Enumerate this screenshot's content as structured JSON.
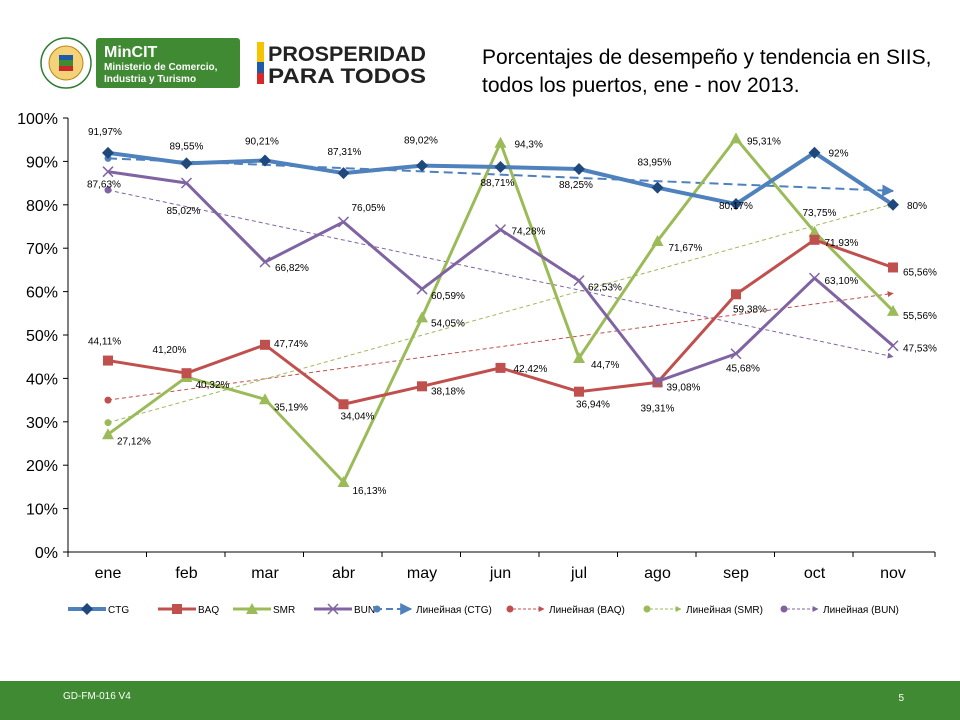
{
  "header": {
    "ministry_name": "MinCIT",
    "ministry_sub1": "Ministerio de Comercio,",
    "ministry_sub2": "Industria y Turismo",
    "slogan_line1": "PROSPERIDAD",
    "slogan_line2": "PARA TODOS",
    "title_line1": "Porcentajes de desempeño y tendencia en SIIS,",
    "title_line2": "todos los puertos, ene -  nov 2013."
  },
  "footer": {
    "code": "GD-FM-016 V4",
    "page": "5"
  },
  "colors": {
    "CTG": "#4f81bd",
    "BAQ": "#c0504d",
    "SMR": "#9bbb59",
    "BUN": "#8064a2",
    "footer": "#3f8a32"
  },
  "chart_data": {
    "type": "line",
    "categories": [
      "ene",
      "feb",
      "mar",
      "abr",
      "may",
      "jun",
      "jul",
      "ago",
      "sep",
      "oct",
      "nov"
    ],
    "ylim": [
      0,
      100
    ],
    "yticks": [
      0,
      10,
      20,
      30,
      40,
      50,
      60,
      70,
      80,
      90,
      100
    ],
    "ytick_labels": [
      "0%",
      "10%",
      "20%",
      "30%",
      "40%",
      "50%",
      "60%",
      "70%",
      "80%",
      "90%",
      "100%"
    ],
    "grid": false,
    "legend_position": "bottom",
    "series": [
      {
        "name": "CTG",
        "marker": "diamond",
        "values": [
          91.97,
          89.55,
          90.21,
          87.31,
          89.02,
          88.71,
          88.25,
          83.95,
          80.17,
          92,
          80
        ],
        "labels": [
          "91,97%",
          "89,55%",
          "90,21%",
          "87,31%",
          "89,02%",
          "88,71%",
          "88,25%",
          "83,95%",
          "80,17%",
          "92%",
          "80%"
        ]
      },
      {
        "name": "BAQ",
        "marker": "square",
        "values": [
          44.11,
          41.2,
          47.74,
          34.04,
          38.18,
          42.42,
          36.94,
          39.08,
          59.38,
          71.93,
          65.56
        ],
        "labels": [
          "44,11%",
          "41,20%",
          "47,74%",
          "34,04%",
          "38,18%",
          "42,42%",
          "36,94%",
          "39,08%",
          "59,38%",
          "71,93%",
          "65,56%"
        ]
      },
      {
        "name": "SMR",
        "marker": "triangle",
        "values": [
          27.12,
          40.32,
          35.19,
          16.13,
          54.05,
          94.3,
          44.7,
          71.67,
          95.31,
          73.75,
          55.56
        ],
        "labels": [
          "27,12%",
          "40,32%",
          "35,19%",
          "16,13%",
          "54,05%",
          "94,3%",
          "44,7%",
          "71,67%",
          "95,31%",
          "73,75%",
          "55,56%"
        ]
      },
      {
        "name": "BUN",
        "marker": "x",
        "values": [
          87.63,
          85.02,
          66.82,
          76.05,
          60.59,
          74.28,
          62.53,
          39.31,
          45.68,
          63.1,
          47.53
        ],
        "labels": [
          "87,63%",
          "85,02%",
          "66,82%",
          "76,05%",
          "60,59%",
          "74,28%",
          "62,53%",
          "39,31%",
          "45,68%",
          "63,10%",
          "47,53%"
        ]
      }
    ],
    "trendlines": [
      {
        "name": "Линейная (CTG)",
        "of": "CTG",
        "start": 90.7,
        "end": 83.2
      },
      {
        "name": "Линейная (BAQ)",
        "of": "BAQ",
        "start": 35.0,
        "end": 59.6
      },
      {
        "name": "Линейная (SMR)",
        "of": "SMR",
        "start": 29.8,
        "end": 80.2
      },
      {
        "name": "Линейная (BUN)",
        "of": "BUN",
        "start": 83.4,
        "end": 45.0
      }
    ]
  }
}
